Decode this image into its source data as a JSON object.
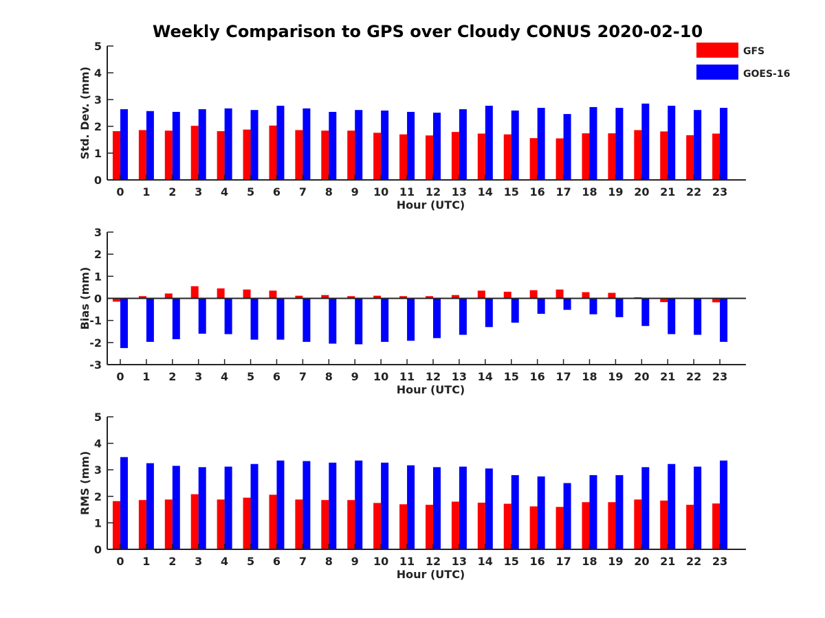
{
  "title": "Weekly Comparison to GPS over Cloudy CONUS 2020-02-10",
  "legend": {
    "placement": "top-right",
    "entries": [
      {
        "name": "GFS",
        "color": "#ff0000"
      },
      {
        "name": "GOES-16",
        "color": "#0000ff"
      }
    ]
  },
  "chart_data": [
    {
      "type": "bar",
      "xlabel": "Hour (UTC)",
      "ylabel": "Std. Dev. (mm)",
      "ylim": [
        0,
        5
      ],
      "yticks": [
        0,
        1,
        2,
        3,
        4,
        5
      ],
      "grid": false,
      "categories": [
        "0",
        "1",
        "2",
        "3",
        "4",
        "5",
        "6",
        "7",
        "8",
        "9",
        "10",
        "11",
        "12",
        "13",
        "14",
        "15",
        "16",
        "17",
        "18",
        "19",
        "20",
        "21",
        "22",
        "23"
      ],
      "series": [
        {
          "name": "GFS",
          "color": "#ff0000",
          "values": [
            1.82,
            1.86,
            1.84,
            2.02,
            1.82,
            1.88,
            2.03,
            1.86,
            1.84,
            1.84,
            1.76,
            1.7,
            1.66,
            1.79,
            1.73,
            1.7,
            1.56,
            1.55,
            1.74,
            1.74,
            1.86,
            1.81,
            1.67,
            1.73
          ]
        },
        {
          "name": "GOES-16",
          "color": "#0000ff",
          "values": [
            2.64,
            2.57,
            2.54,
            2.64,
            2.67,
            2.61,
            2.77,
            2.67,
            2.54,
            2.61,
            2.59,
            2.54,
            2.51,
            2.64,
            2.77,
            2.59,
            2.69,
            2.46,
            2.72,
            2.69,
            2.85,
            2.77,
            2.61,
            2.69
          ]
        }
      ]
    },
    {
      "type": "bar",
      "xlabel": "Hour (UTC)",
      "ylabel": "Bias (mm)",
      "ylim": [
        -3,
        3
      ],
      "yticks": [
        -3,
        -2,
        -1,
        0,
        1,
        2,
        3
      ],
      "grid": false,
      "categories": [
        "0",
        "1",
        "2",
        "3",
        "4",
        "5",
        "6",
        "7",
        "8",
        "9",
        "10",
        "11",
        "12",
        "13",
        "14",
        "15",
        "16",
        "17",
        "18",
        "19",
        "20",
        "21",
        "22",
        "23"
      ],
      "series": [
        {
          "name": "GFS",
          "color": "#ff0000",
          "values": [
            -0.15,
            0.1,
            0.22,
            0.55,
            0.45,
            0.4,
            0.35,
            0.12,
            0.15,
            0.1,
            0.12,
            0.1,
            0.1,
            0.15,
            0.35,
            0.3,
            0.37,
            0.4,
            0.28,
            0.25,
            0.05,
            -0.17,
            0.0,
            -0.18
          ]
        },
        {
          "name": "GOES-16",
          "color": "#0000ff",
          "values": [
            -2.25,
            -1.97,
            -1.85,
            -1.6,
            -1.62,
            -1.87,
            -1.87,
            -1.97,
            -2.05,
            -2.08,
            -1.97,
            -1.92,
            -1.8,
            -1.65,
            -1.3,
            -1.1,
            -0.7,
            -0.52,
            -0.72,
            -0.85,
            -1.25,
            -1.62,
            -1.65,
            -1.97
          ]
        }
      ]
    },
    {
      "type": "bar",
      "xlabel": "Hour (UTC)",
      "ylabel": "RMS (mm)",
      "ylim": [
        0,
        5
      ],
      "yticks": [
        0,
        1,
        2,
        3,
        4,
        5
      ],
      "grid": false,
      "categories": [
        "0",
        "1",
        "2",
        "3",
        "4",
        "5",
        "6",
        "7",
        "8",
        "9",
        "10",
        "11",
        "12",
        "13",
        "14",
        "15",
        "16",
        "17",
        "18",
        "19",
        "20",
        "21",
        "22",
        "23"
      ],
      "series": [
        {
          "name": "GFS",
          "color": "#ff0000",
          "values": [
            1.82,
            1.86,
            1.88,
            2.08,
            1.88,
            1.95,
            2.06,
            1.88,
            1.86,
            1.86,
            1.75,
            1.7,
            1.68,
            1.8,
            1.76,
            1.72,
            1.62,
            1.6,
            1.78,
            1.78,
            1.88,
            1.84,
            1.68,
            1.73
          ]
        },
        {
          "name": "GOES-16",
          "color": "#0000ff",
          "values": [
            3.48,
            3.25,
            3.15,
            3.1,
            3.12,
            3.22,
            3.35,
            3.33,
            3.27,
            3.35,
            3.27,
            3.17,
            3.1,
            3.12,
            3.05,
            2.8,
            2.75,
            2.5,
            2.8,
            2.8,
            3.1,
            3.22,
            3.12,
            3.35
          ]
        }
      ]
    }
  ]
}
